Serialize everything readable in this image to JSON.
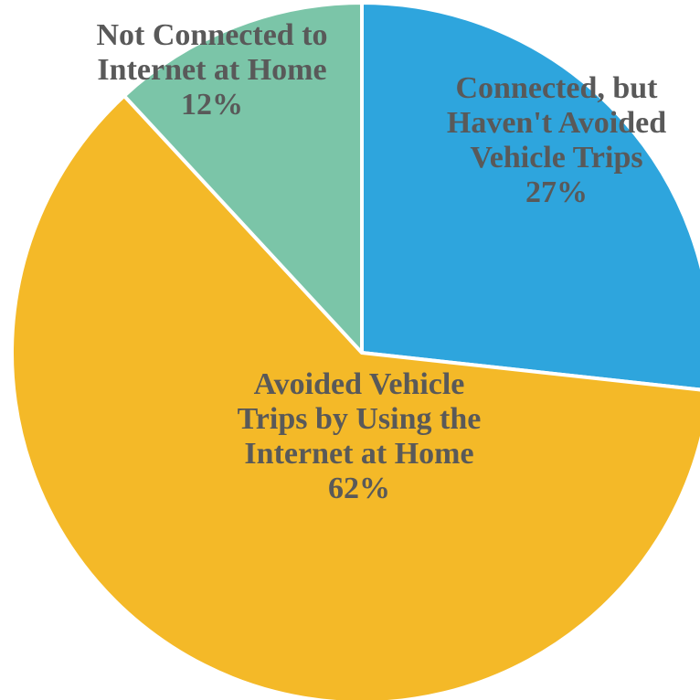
{
  "chart_data": {
    "type": "pie",
    "title": "",
    "start_angle_deg": 0,
    "direction": "clockwise",
    "slices": [
      {
        "label_lines": [
          "Connected, but",
          "Haven't Avoided",
          "Vehicle Trips"
        ],
        "percent_label": "27%",
        "value": 27,
        "color": "#2ea5dd"
      },
      {
        "label_lines": [
          "Avoided Vehicle",
          "Trips by Using the",
          "Internet at Home"
        ],
        "percent_label": "62%",
        "value": 62,
        "color": "#f4b928"
      },
      {
        "label_lines": [
          "Not Connected to",
          "Internet at Home"
        ],
        "percent_label": "12%",
        "value": 12,
        "color": "#7bc5a8"
      }
    ]
  }
}
